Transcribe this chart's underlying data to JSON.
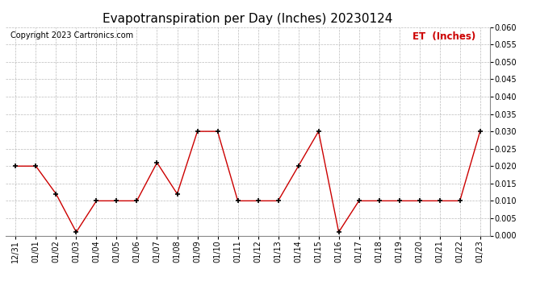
{
  "title": "Evapotranspiration per Day (Inches) 20230124",
  "copyright": "Copyright 2023 Cartronics.com",
  "legend_label": "ET  (Inches)",
  "x_labels": [
    "12/31",
    "01/01",
    "01/02",
    "01/03",
    "01/04",
    "01/05",
    "01/06",
    "01/07",
    "01/08",
    "01/09",
    "01/10",
    "01/11",
    "01/12",
    "01/13",
    "01/14",
    "01/15",
    "01/16",
    "01/17",
    "01/18",
    "01/19",
    "01/20",
    "01/21",
    "01/22",
    "01/23"
  ],
  "y_values": [
    0.02,
    0.02,
    0.012,
    0.001,
    0.01,
    0.01,
    0.01,
    0.021,
    0.012,
    0.03,
    0.03,
    0.01,
    0.01,
    0.01,
    0.02,
    0.03,
    0.001,
    0.01,
    0.01,
    0.01,
    0.01,
    0.01,
    0.01,
    0.03
  ],
  "line_color": "#cc0000",
  "marker_color": "#000000",
  "background_color": "#ffffff",
  "grid_color": "#bbbbbb",
  "ylim": [
    0.0,
    0.06
  ],
  "ytick_step": 0.005,
  "title_fontsize": 11,
  "copyright_fontsize": 7,
  "legend_color": "#cc0000",
  "legend_fontsize": 8.5,
  "tick_fontsize": 7
}
